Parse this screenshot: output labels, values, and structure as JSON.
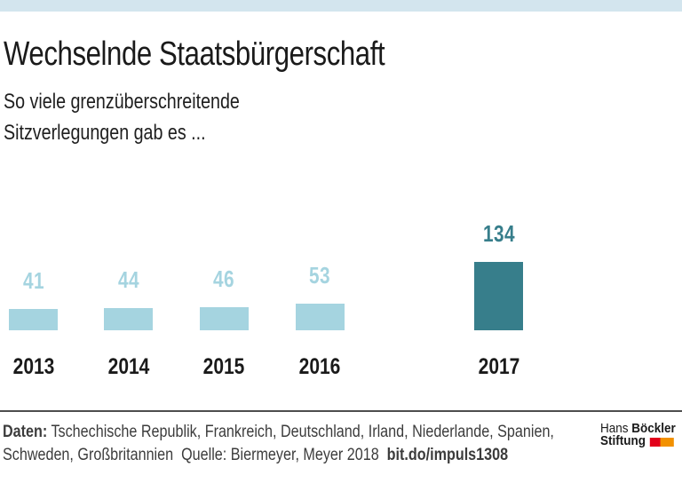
{
  "chart_data": {
    "type": "bar",
    "title": "Wechselnde Staatsbürgerschaft",
    "subtitle_lines": [
      "So viele grenzüberschreitende",
      "Sitzverlegungen gab es ..."
    ],
    "categories": [
      "2013",
      "2014",
      "2015",
      "2016",
      "2017"
    ],
    "values": [
      41,
      44,
      46,
      53,
      134
    ],
    "bar_colors": [
      "#a5d4e0",
      "#a5d4e0",
      "#a5d4e0",
      "#a5d4e0",
      "#377e8b"
    ],
    "value_label_colors": [
      "#a5d4e0",
      "#a5d4e0",
      "#a5d4e0",
      "#a5d4e0",
      "#377e8b"
    ],
    "highlight_category": "2017",
    "ylim": [
      0,
      140
    ],
    "grid": false,
    "legend": false,
    "xlabel": "",
    "ylabel": ""
  },
  "footer": {
    "daten_label": "Daten:",
    "daten_text": " Tschechische Republik, Frankreich, Deutschland, Irland, Niederlande, Spanien,",
    "line2_text": "Schweden, Großbritannien  Quelle: Biermeyer, Meyer 2018  ",
    "link_text": "bit.do/impuls1308"
  },
  "logo": {
    "line1_regular": "Hans ",
    "line1_bold": "Böckler",
    "line2_bold": "Stiftung",
    "square_red": "#e2001a",
    "square_orange": "#f29100"
  },
  "colors": {
    "top_band": "#d3e5ee",
    "text": "#1a1a1a",
    "footer_text": "#3c3c3c",
    "divider": "#4d4d4d"
  }
}
